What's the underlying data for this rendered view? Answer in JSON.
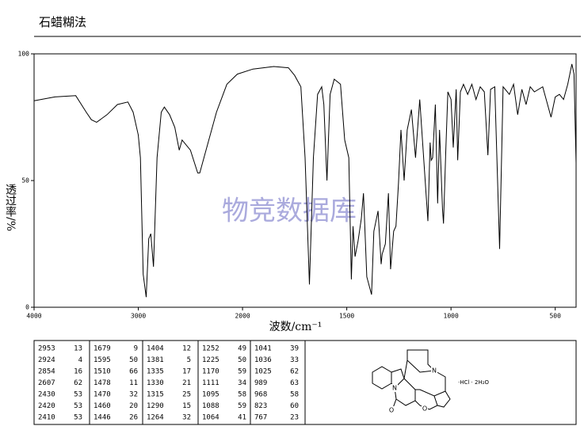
{
  "chart_data": {
    "type": "line",
    "title": "石蜡糊法",
    "xlabel": "波数/cm⁻¹",
    "ylabel": "透过率/%",
    "watermark": "物竞数据库",
    "xlim": [
      4000,
      400
    ],
    "x_scale_break": 2000,
    "x_scale_factor": 2,
    "xticks": [
      4000,
      3000,
      2000,
      1500,
      1000,
      500
    ],
    "ylim": [
      0,
      100
    ],
    "yticks": [
      0,
      50,
      100
    ],
    "x": [
      4000,
      3800,
      3600,
      3500,
      3450,
      3400,
      3300,
      3200,
      3100,
      3050,
      3000,
      2980,
      2953,
      2924,
      2900,
      2880,
      2854,
      2820,
      2780,
      2750,
      2700,
      2650,
      2607,
      2580,
      2500,
      2430,
      2420,
      2410,
      2350,
      2250,
      2150,
      2050,
      1950,
      1850,
      1780,
      1750,
      1720,
      1700,
      1679,
      1660,
      1640,
      1620,
      1610,
      1595,
      1580,
      1560,
      1530,
      1510,
      1490,
      1478,
      1470,
      1460,
      1446,
      1430,
      1420,
      1404,
      1381,
      1370,
      1350,
      1335,
      1330,
      1315,
      1300,
      1290,
      1275,
      1264,
      1252,
      1240,
      1225,
      1210,
      1190,
      1170,
      1150,
      1111,
      1100,
      1095,
      1088,
      1075,
      1064,
      1055,
      1041,
      1036,
      1025,
      1015,
      1000,
      989,
      975,
      968,
      955,
      940,
      920,
      900,
      880,
      860,
      840,
      823,
      810,
      790,
      767,
      750,
      720,
      700,
      680,
      660,
      640,
      620,
      600,
      560,
      520,
      500,
      480,
      460,
      440,
      420,
      410,
      400
    ],
    "series": [
      {
        "color": "#000000",
        "values": [
          81.5,
          83,
          83.5,
          77,
          74,
          73,
          76,
          80,
          81,
          77,
          68,
          59,
          13,
          4,
          27,
          29,
          16,
          59,
          77,
          79,
          76,
          71,
          62,
          66,
          62,
          53,
          53,
          53,
          62,
          77,
          88,
          92,
          94,
          95,
          94.5,
          91.5,
          87,
          59,
          9,
          59,
          84,
          87,
          80,
          50,
          84,
          90,
          88,
          66,
          59,
          11,
          32,
          20,
          26,
          35,
          45,
          12,
          5,
          30,
          38,
          17,
          21,
          25,
          45,
          15,
          30,
          32,
          49,
          70,
          50,
          70,
          78,
          59,
          82,
          34,
          65,
          58,
          59,
          80,
          41,
          70,
          39,
          33,
          62,
          85,
          82,
          63,
          86,
          58,
          85,
          88,
          84,
          88,
          82,
          87,
          85,
          60,
          86,
          87,
          23,
          87,
          84,
          88,
          76,
          86,
          80,
          87,
          85,
          87,
          75,
          83,
          84,
          82,
          88,
          96,
          92,
          57
        ]
      }
    ]
  },
  "table": {
    "rows": [
      [
        "2953",
        "13",
        "1679",
        "9",
        "1404",
        "12",
        "1252",
        "49",
        "1041",
        "39"
      ],
      [
        "2924",
        "4",
        "1595",
        "50",
        "1381",
        "5",
        "1225",
        "50",
        "1036",
        "33"
      ],
      [
        "2854",
        "16",
        "1510",
        "66",
        "1335",
        "17",
        "1170",
        "59",
        "1025",
        "62"
      ],
      [
        "2607",
        "62",
        "1478",
        "11",
        "1330",
        "21",
        "1111",
        "34",
        "989",
        "63"
      ],
      [
        "2430",
        "53",
        "1470",
        "32",
        "1315",
        "25",
        "1095",
        "58",
        "968",
        "58"
      ],
      [
        "2420",
        "53",
        "1460",
        "20",
        "1290",
        "15",
        "1088",
        "59",
        "823",
        "60"
      ],
      [
        "2410",
        "53",
        "1446",
        "26",
        "1264",
        "32",
        "1064",
        "41",
        "767",
        "23"
      ]
    ]
  },
  "structure": {
    "atoms": [
      "N",
      "N",
      "O",
      "O"
    ],
    "salt": "·HCl · 2H₂O"
  }
}
